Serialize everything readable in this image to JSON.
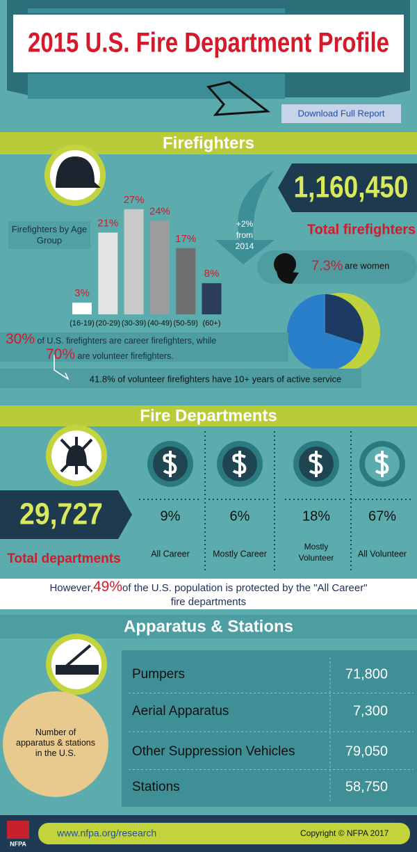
{
  "header": {
    "title": "2015 U.S. Fire Department Profile",
    "download_button": "Download Full Report"
  },
  "firefighters": {
    "heading": "Firefighters",
    "total": "1,160,450",
    "total_label": "Total firefighters",
    "change_lines": [
      "+2%",
      "from",
      "2014"
    ],
    "women": {
      "value": "7.3%",
      "text": "are women"
    },
    "age_chart": {
      "type": "bar",
      "title": "Firefighters by Age Group",
      "categories": [
        "(16-19)",
        "(20-29)",
        "(30-39)",
        "(40-49)",
        "(50-59)",
        "(60+)"
      ],
      "values": [
        3,
        21,
        27,
        24,
        17,
        8
      ],
      "value_labels": [
        "3%",
        "21%",
        "27%",
        "24%",
        "17%",
        "8%"
      ],
      "colors": [
        "#ffffff",
        "#e3e3e3",
        "#c9c9c9",
        "#9c9c9c",
        "#6f6f6f",
        "#2d3d5c"
      ]
    },
    "career_pct": {
      "value": 30,
      "label": "30%"
    },
    "career_text": "of U.S. firefighters are career firefighters, while",
    "volunteer_pct": {
      "value": 70,
      "label": "70%"
    },
    "volunteer_text": "are volunteer firefighters.",
    "pie_colors": [
      "#1d3a63",
      "#2a7fcb"
    ],
    "service_note": "41.8% of volunteer firefighters have 10+ years of active service"
  },
  "departments": {
    "heading": "Fire Departments",
    "total": "29,727",
    "total_label": "Total departments",
    "columns": [
      {
        "pct": "9%",
        "label": "All Career"
      },
      {
        "pct": "6%",
        "label": "Mostly Career"
      },
      {
        "pct": "18%",
        "label": "Mostly Volunteer"
      },
      {
        "pct": "67%",
        "label": "All Volunteer"
      }
    ],
    "note_prefix": "However,",
    "note_pct": "49%",
    "note_suffix": "of the U.S. population is protected by the \"All Career\" fire departments"
  },
  "apparatus": {
    "heading": "Apparatus & Stations",
    "circle_text": "Number of apparatus & stations in the U.S.",
    "rows": [
      [
        "Pumpers",
        "71,800"
      ],
      [
        "Aerial Apparatus",
        "7,300"
      ],
      [
        "Other Suppression Vehicles",
        "79,050"
      ],
      [
        "Stations",
        "58,750"
      ]
    ]
  },
  "footer": {
    "logo": "NFPA",
    "url": "www.nfpa.org/research",
    "copyright": "Copyright © NFPA 2017"
  }
}
